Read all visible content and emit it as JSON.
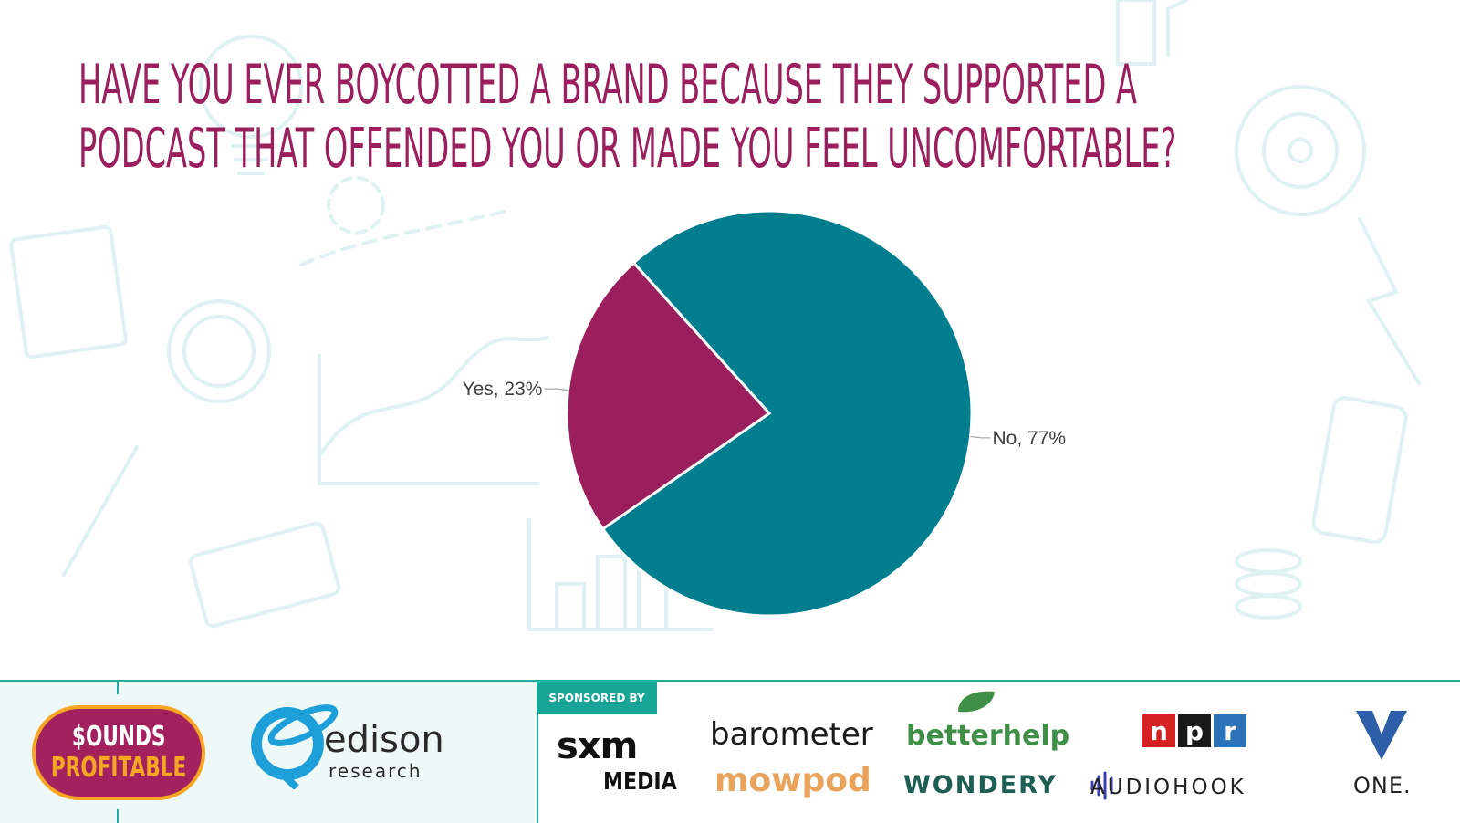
{
  "title": {
    "line1": "HAVE YOU EVER BOYCOTTED A BRAND BECAUSE THEY SUPPORTED A",
    "line2": "PODCAST THAT OFFENDED YOU OR MADE YOU FEEL UNCOMFORTABLE?"
  },
  "colors": {
    "title": "#9b1f5c",
    "no": "#027e8f",
    "yes": "#9b1f5c",
    "accent": "#2aa9a0"
  },
  "chart_data": {
    "type": "pie",
    "slices": [
      {
        "label": "No",
        "value": 77,
        "display": "No, 77%",
        "color": "#027e8f"
      },
      {
        "label": "Yes",
        "value": 23,
        "display": "Yes, 23%",
        "color": "#9b1f5c"
      }
    ]
  },
  "footer": {
    "sounds_profitable": [
      "$OUNDS",
      "PROFITABLE"
    ],
    "edison": {
      "word": "edison",
      "sub": "research"
    },
    "sponsored_label": "SPONSORED BY",
    "sponsors": {
      "sxm_top": "sxm",
      "sxm_bottom": "MEDIA",
      "barometer": "barometer",
      "mowpod": "mowpod",
      "betterhelp": "betterhelp",
      "wondery": "WONDERY",
      "npr": [
        "n",
        "p",
        "r"
      ],
      "audiohook": "AUDIOHOOK",
      "one": "ONE."
    }
  }
}
